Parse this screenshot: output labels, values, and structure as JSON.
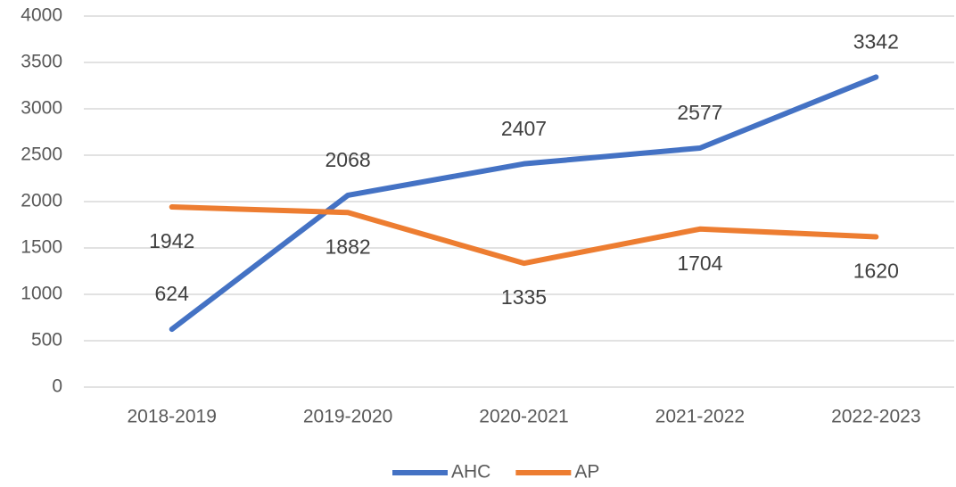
{
  "chart_data": {
    "type": "line",
    "categories": [
      "2018-2019",
      "2019-2020",
      "2020-2021",
      "2021-2022",
      "2022-2023"
    ],
    "series": [
      {
        "name": "AHC",
        "color": "#4472c4",
        "values": [
          624,
          2068,
          2407,
          2577,
          3342
        ]
      },
      {
        "name": "AP",
        "color": "#ed7d31",
        "values": [
          1942,
          1882,
          1335,
          1704,
          1620
        ]
      }
    ],
    "ylim": [
      0,
      4000
    ],
    "yticks": [
      0,
      500,
      1000,
      1500,
      2000,
      2500,
      3000,
      3500,
      4000
    ],
    "grid": true,
    "legend": "bottom"
  }
}
